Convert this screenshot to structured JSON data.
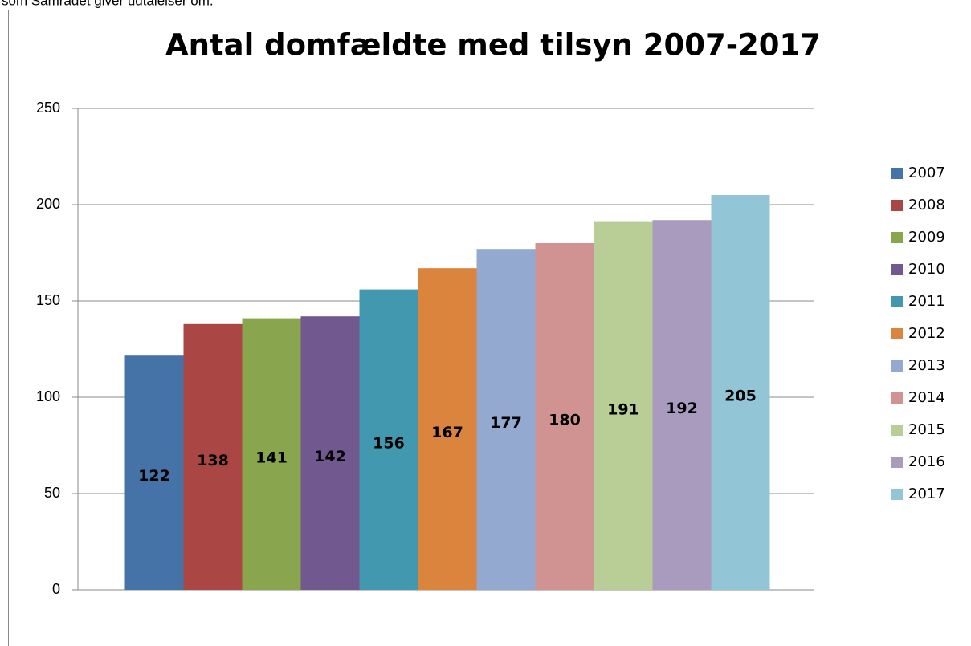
{
  "page_text": "som Samrådet giver udtalelser om.",
  "chart_data": {
    "type": "bar",
    "title": "Antal domfældte med tilsyn 2007-2017",
    "series": [
      {
        "name": "2007",
        "color": "#4572a7",
        "values": [
          122
        ]
      },
      {
        "name": "2008",
        "color": "#aa4643",
        "values": [
          138
        ]
      },
      {
        "name": "2009",
        "color": "#89a54e",
        "values": [
          141
        ]
      },
      {
        "name": "2010",
        "color": "#71588f",
        "values": [
          142
        ]
      },
      {
        "name": "2011",
        "color": "#4198af",
        "values": [
          156
        ]
      },
      {
        "name": "2012",
        "color": "#db843d",
        "values": [
          167
        ]
      },
      {
        "name": "2013",
        "color": "#93a9cf",
        "values": [
          177
        ]
      },
      {
        "name": "2014",
        "color": "#d19392",
        "values": [
          180
        ]
      },
      {
        "name": "2015",
        "color": "#b9cd96",
        "values": [
          191
        ]
      },
      {
        "name": "2016",
        "color": "#a99bbd",
        "values": [
          192
        ]
      },
      {
        "name": "2017",
        "color": "#92c5d5",
        "values": [
          205
        ]
      }
    ],
    "ylim": [
      0,
      250
    ],
    "yticks": [
      0,
      50,
      100,
      150,
      200,
      250
    ],
    "grid": true,
    "legend": "right"
  }
}
